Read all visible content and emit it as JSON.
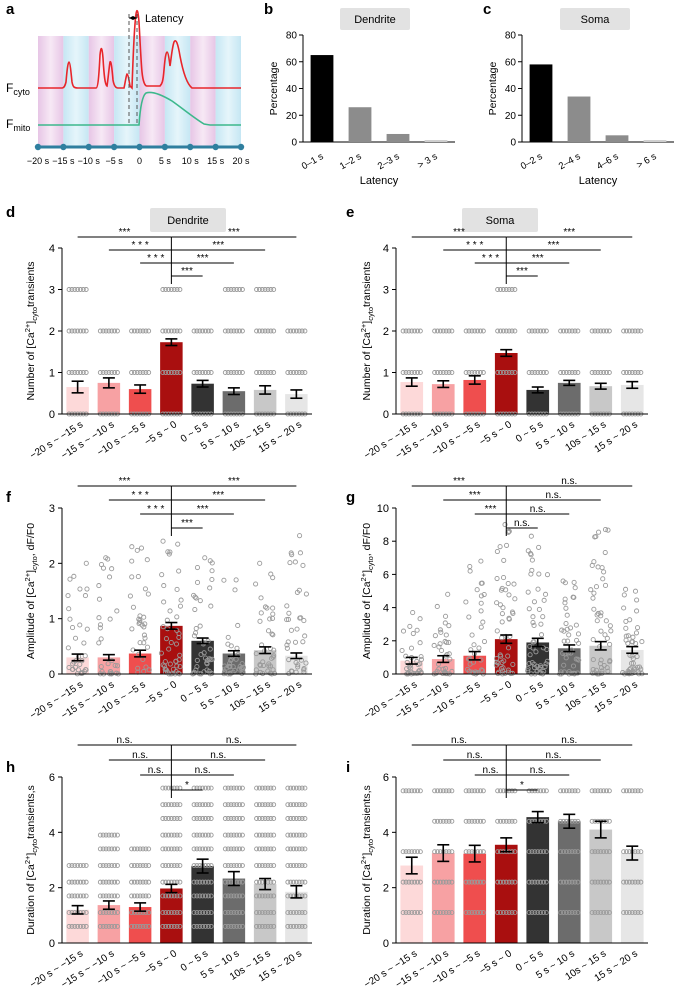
{
  "colors": {
    "bars": [
      "#fdd9d9",
      "#f7a1a3",
      "#ef4e4e",
      "#a90f0f",
      "#333333",
      "#6c6c6c",
      "#c8c8c8",
      "#e6e6e6"
    ],
    "cyto_trace": "#e8262b",
    "mito_trace": "#3db88c",
    "timeline": "#2f7f9f",
    "pink_band": "#e8c5e5",
    "blue_band": "#c6e7f3",
    "title_box": "#e2e2e2",
    "dots": "#9a9a9a"
  },
  "panel_letters": {
    "a": "a",
    "b": "b",
    "c": "c",
    "d": "d",
    "e": "e",
    "f": "f",
    "g": "g",
    "h": "h",
    "i": "i"
  },
  "panel_a": {
    "latency_label": "Latency",
    "fcyto_label": "F",
    "fcyto_sub": "cyto",
    "fmito_label": "F",
    "fmito_sub": "mito",
    "time_ticks": [
      "−20 s",
      "−15 s",
      "−10 s",
      "−5 s",
      "0",
      "5 s",
      "10 s",
      "15 s",
      "20 s"
    ]
  },
  "chart_data": [
    {
      "id": "b",
      "type": "bar",
      "title": "Dendrite",
      "xlabel": "Latency",
      "ylabel": "Percentage",
      "categories": [
        "0–1 s",
        "1–2 s",
        "2–3 s",
        "> 3 s"
      ],
      "values": [
        65,
        26,
        6,
        1.5
      ],
      "colors": [
        "#000000",
        "#8c8c8c",
        "#8c8c8c",
        "#cfcfcf"
      ],
      "ylim": [
        0,
        80
      ],
      "yticks": [
        0,
        20,
        40,
        60,
        80
      ]
    },
    {
      "id": "c",
      "type": "bar",
      "title": "Soma",
      "xlabel": "Latency",
      "ylabel": "Percentage",
      "categories": [
        "0–2 s",
        "2–4 s",
        "4–6 s",
        "> 6 s"
      ],
      "values": [
        58,
        34,
        5,
        1.5
      ],
      "colors": [
        "#000000",
        "#8c8c8c",
        "#8c8c8c",
        "#cfcfcf"
      ],
      "ylim": [
        0,
        80
      ],
      "yticks": [
        0,
        20,
        40,
        60,
        80
      ]
    },
    {
      "id": "d",
      "type": "bar",
      "title": "Dendrite",
      "ylabel_pre": "Number of [Ca",
      "ylabel_sup": "2+",
      "ylabel_mid": "]",
      "ylabel_sub": "cyto",
      "ylabel_post": "transients",
      "categories": [
        "−20 s ~ −15 s",
        "−15 s ~ −10 s",
        "−10 s ~ −5 s",
        "−5 s ~ 0",
        "0 ~ 5 s",
        "5 s ~ 10 s",
        "10s ~ 15 s",
        "15 s ~ 20 s"
      ],
      "values": [
        0.65,
        0.75,
        0.6,
        1.73,
        0.73,
        0.55,
        0.58,
        0.48
      ],
      "errors": [
        0.14,
        0.12,
        0.1,
        0.08,
        0.08,
        0.08,
        0.1,
        0.1
      ],
      "ylim": [
        0,
        4
      ],
      "yticks": [
        0,
        1,
        2,
        3,
        4
      ],
      "dot_style": "strip",
      "dot_values": [
        [
          0,
          1,
          2,
          3
        ],
        [
          0,
          1,
          2
        ],
        [
          0,
          1,
          2
        ],
        [
          0,
          1,
          2,
          3
        ],
        [
          0,
          1,
          2
        ],
        [
          0,
          1,
          2,
          3
        ],
        [
          0,
          1,
          2,
          3
        ],
        [
          0,
          1,
          2
        ]
      ],
      "significance": [
        {
          "from": 0,
          "label": "***"
        },
        {
          "from": 1,
          "label": "* * *"
        },
        {
          "from": 2,
          "label": "* * *"
        },
        {
          "from": 4,
          "label": "***"
        },
        {
          "from": 5,
          "label": "***"
        },
        {
          "from": 6,
          "label": "***"
        },
        {
          "from": 7,
          "label": "***"
        }
      ]
    },
    {
      "id": "e",
      "type": "bar",
      "title": "Soma",
      "ylabel_pre": "Number of  [Ca",
      "ylabel_sup": "2+",
      "ylabel_mid": "]",
      "ylabel_sub": "cyto",
      "ylabel_post": "transients",
      "categories": [
        "−20 s ~ −15 s",
        "−15 s ~ −10 s",
        "−10 s ~ −5 s",
        "−5 s ~ 0",
        "0 ~ 5 s",
        "5 s ~ 10 s",
        "10s ~ 15 s",
        "15 s ~ 20 s"
      ],
      "values": [
        0.77,
        0.72,
        0.82,
        1.47,
        0.58,
        0.75,
        0.67,
        0.7
      ],
      "errors": [
        0.1,
        0.08,
        0.1,
        0.08,
        0.07,
        0.06,
        0.07,
        0.08
      ],
      "ylim": [
        0,
        4
      ],
      "yticks": [
        0,
        1,
        2,
        3,
        4
      ],
      "dot_style": "strip",
      "dot_values": [
        [
          0,
          1,
          2
        ],
        [
          0,
          1,
          2
        ],
        [
          0,
          1,
          2
        ],
        [
          0,
          1,
          2,
          3
        ],
        [
          0,
          1,
          2
        ],
        [
          0,
          1,
          2
        ],
        [
          0,
          1,
          2
        ],
        [
          0,
          1,
          2
        ]
      ],
      "significance": [
        {
          "from": 0,
          "label": "***"
        },
        {
          "from": 1,
          "label": "* * *"
        },
        {
          "from": 2,
          "label": "* * *"
        },
        {
          "from": 4,
          "label": "***"
        },
        {
          "from": 5,
          "label": "***"
        },
        {
          "from": 6,
          "label": "***"
        },
        {
          "from": 7,
          "label": "***"
        }
      ]
    },
    {
      "id": "f",
      "type": "bar",
      "title": "",
      "ylabel_pre": "Amplitude of [Ca",
      "ylabel_sup": "2+",
      "ylabel_mid": "]",
      "ylabel_sub": "cyto",
      "ylabel_post": ", dF/F0",
      "categories": [
        "−20 s ~ −15 s",
        "−15 s ~ −10 s",
        "−10 s ~ −5 s",
        "−5 s ~ 0",
        "0 ~ 5 s",
        "5 s ~ 10 s",
        "10s ~ 15 s",
        "15 s ~ 20 s"
      ],
      "values": [
        0.3,
        0.3,
        0.37,
        0.87,
        0.6,
        0.37,
        0.43,
        0.33
      ],
      "errors": [
        0.06,
        0.05,
        0.06,
        0.06,
        0.05,
        0.05,
        0.06,
        0.05
      ],
      "ylim": [
        0,
        3
      ],
      "yticks": [
        0,
        1,
        2,
        3
      ],
      "dot_style": "scatter",
      "dot_max": [
        2.0,
        2.1,
        2.3,
        2.4,
        2.1,
        1.7,
        2.0,
        2.5
      ],
      "dot_n": [
        34,
        30,
        34,
        48,
        44,
        36,
        40,
        38
      ],
      "significance": [
        {
          "from": 0,
          "label": "***"
        },
        {
          "from": 1,
          "label": "* * *"
        },
        {
          "from": 2,
          "label": "* * *"
        },
        {
          "from": 4,
          "label": "***"
        },
        {
          "from": 5,
          "label": "***"
        },
        {
          "from": 6,
          "label": "***"
        },
        {
          "from": 7,
          "label": "***"
        }
      ]
    },
    {
      "id": "g",
      "type": "bar",
      "title": "",
      "ylabel_pre": "Amplitude of [Ca",
      "ylabel_sup": "2+",
      "ylabel_mid": "]",
      "ylabel_sub": "cyto",
      "ylabel_post": ", dF/F0",
      "categories": [
        "−20 s ~ −15 s",
        "−15 s ~ −10 s",
        "−10 s ~ −5 s",
        "−5 s ~ 0",
        "0 ~ 5 s",
        "5 s ~ 10 s",
        "10s ~ 15 s",
        "15 s ~ 20 s"
      ],
      "values": [
        0.8,
        0.9,
        1.1,
        2.1,
        1.9,
        1.55,
        1.7,
        1.45
      ],
      "errors": [
        0.2,
        0.2,
        0.25,
        0.25,
        0.25,
        0.2,
        0.25,
        0.2
      ],
      "ylim": [
        0,
        10
      ],
      "yticks": [
        0,
        2,
        4,
        6,
        8,
        10
      ],
      "dot_style": "scatter",
      "dot_max": [
        3.7,
        4.8,
        6.8,
        9.0,
        8.3,
        5.6,
        8.7,
        5.1
      ],
      "dot_n": [
        34,
        34,
        36,
        52,
        52,
        44,
        50,
        46
      ],
      "significance": [
        {
          "from": 0,
          "label": "***"
        },
        {
          "from": 1,
          "label": "***"
        },
        {
          "from": 2,
          "label": "***"
        },
        {
          "from": 4,
          "label": "n.s."
        },
        {
          "from": 5,
          "label": "n.s."
        },
        {
          "from": 6,
          "label": "n.s."
        },
        {
          "from": 7,
          "label": "n.s."
        }
      ]
    },
    {
      "id": "h",
      "type": "bar",
      "title": "",
      "ylabel_pre": "Duration of [Ca",
      "ylabel_sup": "2+",
      "ylabel_mid": "]",
      "ylabel_sub": "cyto",
      "ylabel_post": "transients,s",
      "categories": [
        "−20 s ~ −15 s",
        "−15 s ~ −10 s",
        "−10 s ~ −5 s",
        "−5 s ~ 0",
        "0 ~ 5 s",
        "5 s ~ 10 s",
        "10s ~ 15 s",
        "15 s ~ 20 s"
      ],
      "values": [
        1.2,
        1.37,
        1.3,
        1.97,
        2.78,
        2.33,
        2.13,
        1.85
      ],
      "errors": [
        0.15,
        0.15,
        0.15,
        0.15,
        0.25,
        0.25,
        0.2,
        0.22
      ],
      "ylim": [
        0,
        6
      ],
      "yticks": [
        0,
        2,
        4,
        6
      ],
      "dot_style": "strip",
      "dot_values": [
        [
          0.6,
          1.1,
          1.7,
          2.2,
          2.8
        ],
        [
          0.6,
          1.1,
          1.7,
          2.2,
          2.8,
          3.4,
          3.9
        ],
        [
          0.6,
          1.1,
          1.7,
          2.2,
          2.8,
          3.4
        ],
        [
          0.6,
          1.1,
          1.7,
          2.2,
          2.8,
          3.4,
          3.9,
          4.5,
          5.0,
          5.6
        ],
        [
          0.6,
          1.1,
          1.7,
          2.2,
          2.8,
          3.4,
          3.9,
          4.5,
          5.0,
          5.6
        ],
        [
          0.6,
          1.1,
          1.7,
          2.2,
          2.8,
          3.4,
          3.9,
          4.5,
          5.0,
          5.6
        ],
        [
          0.6,
          1.1,
          1.7,
          2.2,
          2.8,
          3.4,
          3.9,
          4.5,
          5.0,
          5.6
        ],
        [
          0.6,
          1.1,
          1.7,
          2.2,
          2.8,
          3.4,
          3.9,
          4.5,
          5.0,
          5.6
        ]
      ],
      "significance": [
        {
          "from": 0,
          "label": "n.s."
        },
        {
          "from": 1,
          "label": "n.s."
        },
        {
          "from": 2,
          "label": "n.s."
        },
        {
          "from": 4,
          "label": "*"
        },
        {
          "from": 5,
          "label": "n.s."
        },
        {
          "from": 6,
          "label": "n.s."
        },
        {
          "from": 7,
          "label": "n.s."
        }
      ]
    },
    {
      "id": "i",
      "type": "bar",
      "title": "",
      "ylabel_pre": "Duration of [Ca",
      "ylabel_sup": "2+",
      "ylabel_mid": "]",
      "ylabel_sub": "cyto",
      "ylabel_post": "transients,s",
      "categories": [
        "−20 s ~ −15 s",
        "−15 s ~ −10 s",
        "−10 s ~ −5 s",
        "−5 s ~ 0",
        "0 ~ 5 s",
        "5 s ~ 10 s",
        "10s ~ 15 s",
        "15 s ~ 20 s"
      ],
      "values": [
        2.8,
        3.25,
        3.23,
        3.55,
        4.55,
        4.4,
        4.1,
        3.25
      ],
      "errors": [
        0.3,
        0.3,
        0.3,
        0.25,
        0.2,
        0.25,
        0.3,
        0.25
      ],
      "ylim": [
        0,
        6
      ],
      "yticks": [
        0,
        2,
        4,
        6
      ],
      "dot_style": "strip",
      "dot_values": [
        [
          1.1,
          2.2,
          3.3,
          5.5
        ],
        [
          1.1,
          2.2,
          3.3,
          4.4,
          5.5
        ],
        [
          1.1,
          2.2,
          3.3,
          4.4,
          5.5
        ],
        [
          1.1,
          2.2,
          3.3,
          4.4,
          5.5
        ],
        [
          1.1,
          2.2,
          3.3,
          4.4,
          5.5
        ],
        [
          1.1,
          2.2,
          3.3,
          4.4,
          5.5
        ],
        [
          1.1,
          2.2,
          3.3,
          4.4,
          5.5
        ],
        [
          1.1,
          2.2,
          3.3,
          5.5
        ]
      ],
      "significance": [
        {
          "from": 0,
          "label": "n.s."
        },
        {
          "from": 1,
          "label": "n.s."
        },
        {
          "from": 2,
          "label": "n.s."
        },
        {
          "from": 4,
          "label": "*"
        },
        {
          "from": 5,
          "label": "n.s."
        },
        {
          "from": 6,
          "label": "n.s."
        },
        {
          "from": 7,
          "label": "n.s."
        }
      ]
    }
  ]
}
